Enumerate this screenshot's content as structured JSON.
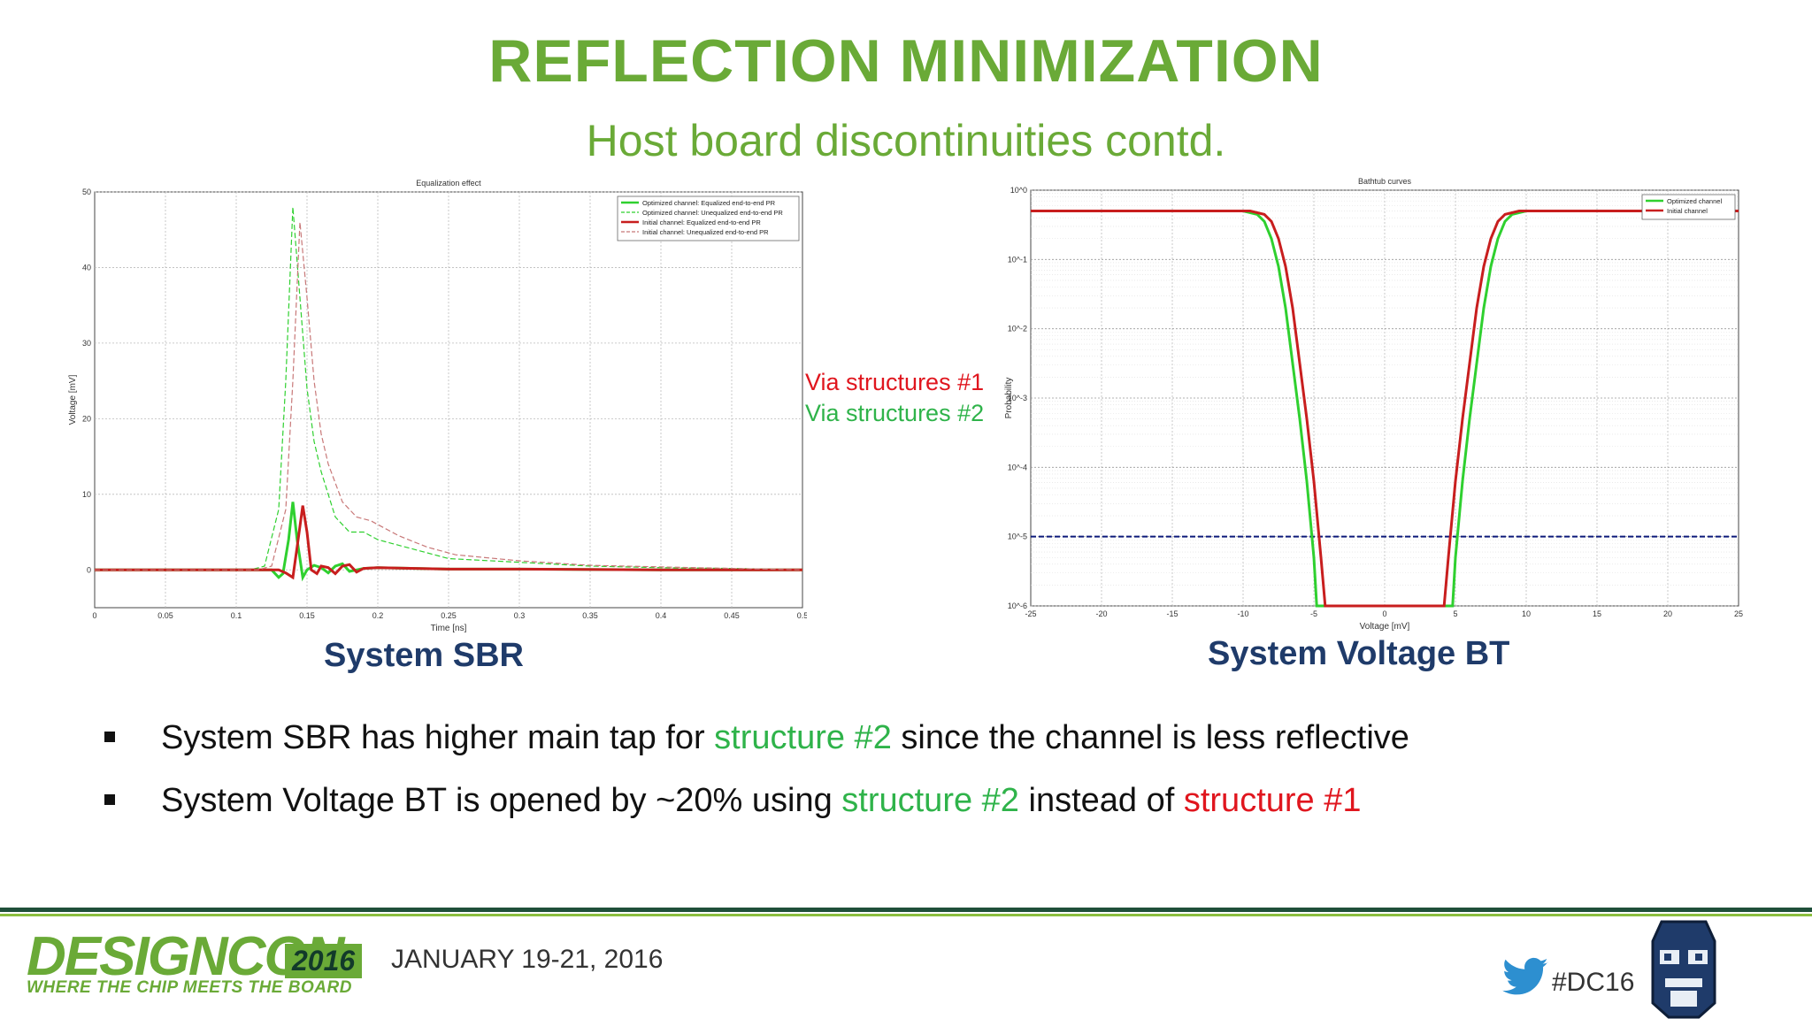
{
  "slide": {
    "title": "REFLECTION MINIMIZATION",
    "subtitle": "Host board discontinuities contd."
  },
  "legend_labels": {
    "via1": "Via structures #1",
    "via2": "Via structures #2"
  },
  "captions": {
    "left": "System SBR",
    "right": "System Voltage BT"
  },
  "bullets": [
    {
      "pre": "System SBR has higher main tap for ",
      "highlight": "structure #2",
      "post": " since the channel is less reflective"
    },
    {
      "pre": "System Voltage BT is opened by ~20% using ",
      "highlight": "structure #2",
      "mid": " instead of ",
      "highlight2": "structure #1"
    }
  ],
  "footer": {
    "logo": "DESIGNCON",
    "year": "2016",
    "tagline": "WHERE THE CHIP MEETS THE BOARD",
    "date": "JANUARY 19-21, 2016",
    "hashtag": "#DC16"
  },
  "colors": {
    "title_green": "#6aaa37",
    "caption_blue": "#1f3b6a",
    "series_green": "#2fd02f",
    "series_red": "#c81e1e",
    "highlight_green": "#2fb34a",
    "highlight_red": "#e0161e"
  },
  "chart_data": [
    {
      "type": "line",
      "title": "Equalization effect",
      "xlabel": "Time [ns]",
      "ylabel": "Voltage [mV]",
      "xlim": [
        0,
        0.5
      ],
      "ylim": [
        -5,
        50
      ],
      "xticks": [
        "0",
        "0.05",
        "0.1",
        "0.15",
        "0.2",
        "0.25",
        "0.3",
        "0.35",
        "0.4",
        "0.45",
        "0.5"
      ],
      "yticks": [
        "0",
        "10",
        "20",
        "30",
        "40",
        "50"
      ],
      "grid": true,
      "legend_position": "top-right",
      "series": [
        {
          "name": "Optimized channel: Equalized end-to-end PR",
          "color": "#2fd02f",
          "style": "solid",
          "x": [
            0,
            0.125,
            0.13,
            0.133,
            0.137,
            0.14,
            0.143,
            0.147,
            0.15,
            0.155,
            0.16,
            0.165,
            0.17,
            0.175,
            0.18,
            0.19,
            0.2,
            0.25,
            0.3,
            0.4,
            0.5
          ],
          "y": [
            0,
            0,
            -1,
            -0.5,
            4,
            9,
            4,
            -1,
            0,
            0.6,
            0.3,
            -0.4,
            0.5,
            0.8,
            -0.2,
            0.2,
            0.3,
            0.1,
            0.1,
            0,
            0
          ]
        },
        {
          "name": "Optimized channel: Unequalized end-to-end PR",
          "color": "#2fd02f",
          "style": "dashed",
          "x": [
            0,
            0.11,
            0.12,
            0.13,
            0.135,
            0.14,
            0.145,
            0.15,
            0.155,
            0.16,
            0.17,
            0.18,
            0.19,
            0.2,
            0.21,
            0.23,
            0.25,
            0.3,
            0.35,
            0.4,
            0.45,
            0.5
          ],
          "y": [
            0,
            0,
            0.5,
            8,
            25,
            48,
            36,
            24,
            17,
            13,
            7,
            5,
            5,
            4,
            3.5,
            2.5,
            1.5,
            1,
            0.5,
            0.3,
            0.2,
            0
          ]
        },
        {
          "name": "Initial channel: Equalized end-to-end PR",
          "color": "#c81e1e",
          "style": "solid",
          "x": [
            0,
            0.13,
            0.135,
            0.14,
            0.143,
            0.147,
            0.15,
            0.153,
            0.157,
            0.16,
            0.165,
            0.17,
            0.175,
            0.18,
            0.185,
            0.19,
            0.2,
            0.25,
            0.3,
            0.4,
            0.5
          ],
          "y": [
            0,
            0,
            -0.4,
            -1,
            3,
            8.5,
            5,
            0,
            -0.5,
            0.5,
            0.3,
            -0.5,
            0.5,
            0.7,
            -0.3,
            0.2,
            0.3,
            0.1,
            0.1,
            0,
            0
          ]
        },
        {
          "name": "Initial channel: Unequalized end-to-end PR",
          "color": "#c87878",
          "style": "dashed",
          "x": [
            0,
            0.115,
            0.125,
            0.135,
            0.14,
            0.145,
            0.15,
            0.155,
            0.16,
            0.165,
            0.175,
            0.185,
            0.195,
            0.205,
            0.215,
            0.235,
            0.255,
            0.3,
            0.35,
            0.4,
            0.45,
            0.5
          ],
          "y": [
            0,
            0,
            0.5,
            8,
            25,
            46,
            36,
            25,
            18,
            14,
            9,
            7,
            6.5,
            5.5,
            4.5,
            3,
            2,
            1.2,
            0.6,
            0.4,
            0.2,
            0
          ]
        }
      ]
    },
    {
      "type": "line",
      "title": "Bathtub curves",
      "xlabel": "Voltage [mV]",
      "ylabel": "Probability",
      "xlim": [
        -25,
        25
      ],
      "ylim_log10": [
        -6,
        0
      ],
      "log_scale": "y",
      "xticks": [
        "-25",
        "-20",
        "-15",
        "-10",
        "-5",
        "0",
        "5",
        "10",
        "15",
        "20",
        "25"
      ],
      "yticks": [
        "10^0",
        "10^-1",
        "10^-2",
        "10^-3",
        "10^-4",
        "10^-5",
        "10^-6"
      ],
      "grid": true,
      "legend_position": "top-right",
      "threshold": {
        "label": "",
        "y_log10": -5,
        "color": "#0c1a7a",
        "style": "dashed"
      },
      "series": [
        {
          "name": "Optimized channel",
          "color": "#2fd02f",
          "x": [
            -25,
            -10,
            -9,
            -8.5,
            -8,
            -7.5,
            -7,
            -6.5,
            -6,
            -5.5,
            -5,
            -4.8,
            4.8,
            5,
            5.5,
            6,
            6.5,
            7,
            7.5,
            8,
            8.5,
            9,
            10,
            25
          ],
          "y_log10": [
            -0.3,
            -0.3,
            -0.35,
            -0.45,
            -0.7,
            -1.1,
            -1.7,
            -2.5,
            -3.3,
            -4.2,
            -5.3,
            -6,
            -6,
            -5.3,
            -4.2,
            -3.3,
            -2.5,
            -1.7,
            -1.1,
            -0.7,
            -0.45,
            -0.35,
            -0.3,
            -0.3
          ]
        },
        {
          "name": "Initial channel",
          "color": "#c81e1e",
          "x": [
            -25,
            -9.5,
            -8.5,
            -8,
            -7.5,
            -7,
            -6.5,
            -6,
            -5.5,
            -5,
            -4.5,
            -4.2,
            4.2,
            4.5,
            5,
            5.5,
            6,
            6.5,
            7,
            7.5,
            8,
            8.5,
            9.5,
            25
          ],
          "y_log10": [
            -0.3,
            -0.3,
            -0.35,
            -0.45,
            -0.7,
            -1.1,
            -1.7,
            -2.5,
            -3.3,
            -4.2,
            -5.3,
            -6,
            -6,
            -5.3,
            -4.2,
            -3.3,
            -2.5,
            -1.7,
            -1.1,
            -0.7,
            -0.45,
            -0.35,
            -0.3,
            -0.3
          ]
        }
      ]
    }
  ]
}
